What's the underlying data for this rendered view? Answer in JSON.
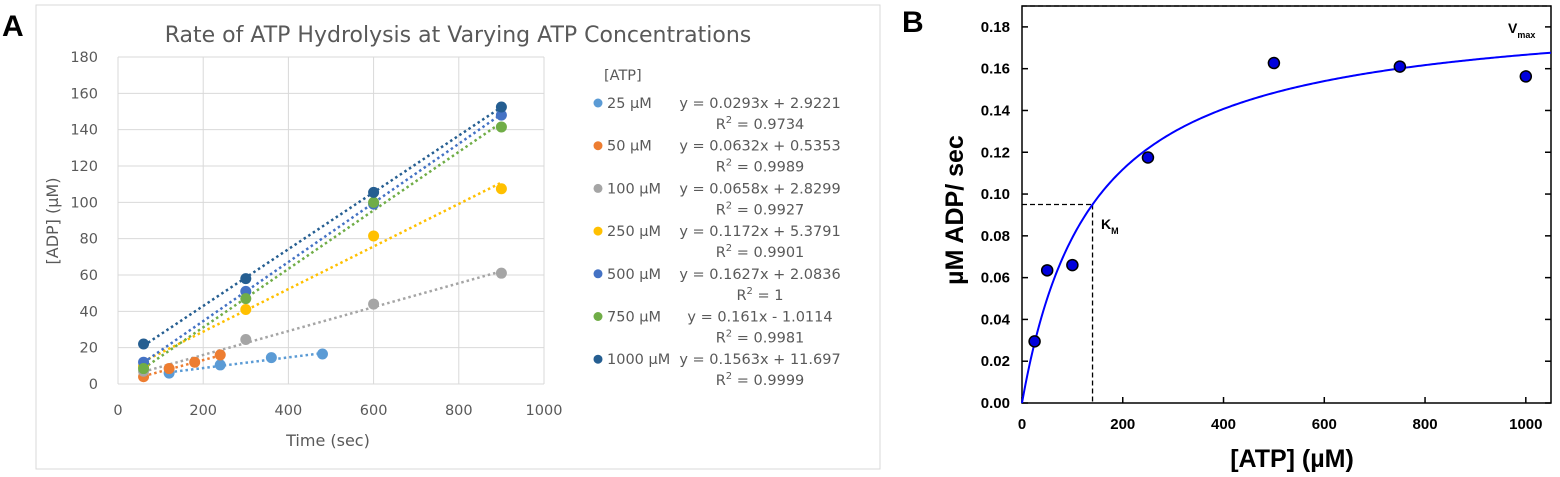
{
  "panels": {
    "a_label": "A",
    "b_label": "B"
  },
  "chart_data": [
    {
      "type": "scatter",
      "title": "Rate of ATP Hydrolysis at Varying ATP Concentrations",
      "xlabel": "Time (sec)",
      "ylabel": "[ADP] (µM)",
      "xlim": [
        0,
        1000
      ],
      "ylim": [
        0,
        180
      ],
      "xticks": [
        "0",
        "200",
        "400",
        "600",
        "800",
        "1000"
      ],
      "yticks": [
        "0",
        "20",
        "40",
        "60",
        "80",
        "100",
        "120",
        "140",
        "160",
        "180"
      ],
      "grid": true,
      "trendlines": "dotted linear",
      "legend_title": "[ATP]",
      "legend_position": "right",
      "series": [
        {
          "name": "25 µM",
          "color": "#5b9bd5",
          "x": [
            120,
            240,
            360,
            480
          ],
          "y": [
            6,
            10.5,
            14.5,
            16.5
          ],
          "slope": 0.0293,
          "intercept": 2.9221,
          "equation": "y = 0.0293x + 2.9221",
          "r2_prefix": "R",
          "r2_value": " = 0.9734"
        },
        {
          "name": "50 µM",
          "color": "#ed7d31",
          "x": [
            60,
            120,
            180,
            240
          ],
          "y": [
            4,
            8.5,
            12,
            16
          ],
          "slope": 0.0632,
          "intercept": 0.5353,
          "equation": "y = 0.0632x + 0.5353",
          "r2_prefix": "R",
          "r2_value": " = 0.9989"
        },
        {
          "name": "100 µM",
          "color": "#a5a5a5",
          "x": [
            60,
            300,
            600,
            900
          ],
          "y": [
            7,
            24.5,
            44,
            61
          ],
          "slope": 0.0658,
          "intercept": 2.8299,
          "equation": "y = 0.0658x + 2.8299",
          "r2_prefix": "R",
          "r2_value": " = 0.9927"
        },
        {
          "name": "250 µM",
          "color": "#ffc000",
          "x": [
            60,
            300,
            600,
            900
          ],
          "y": [
            10,
            41,
            81.5,
            107.5
          ],
          "slope": 0.1172,
          "intercept": 5.3791,
          "equation": "y = 0.1172x + 5.3791",
          "r2_prefix": "R",
          "r2_value": " = 0.9901"
        },
        {
          "name": "500 µM",
          "color": "#4472c4",
          "x": [
            60,
            300,
            600,
            900
          ],
          "y": [
            12,
            51,
            99,
            148
          ],
          "slope": 0.1627,
          "intercept": 2.0836,
          "equation": "y = 0.1627x + 2.0836",
          "r2_prefix": "R",
          "r2_value": " = 1"
        },
        {
          "name": "750 µM",
          "color": "#70ad47",
          "x": [
            60,
            300,
            600,
            900
          ],
          "y": [
            8.5,
            47,
            100,
            141.5
          ],
          "slope": 0.161,
          "intercept": -1.0114,
          "equation": "y = 0.161x - 1.0114",
          "r2_prefix": "R",
          "r2_value": " = 0.9981"
        },
        {
          "name": "1000 µM",
          "color": "#255e91",
          "x": [
            60,
            300,
            600,
            900
          ],
          "y": [
            22,
            58,
            105.5,
            152.5
          ],
          "slope": 0.1563,
          "intercept": 11.697,
          "equation": "y = 0.1563x + 11.697",
          "r2_prefix": "R",
          "r2_value": " = 0.9999"
        }
      ]
    },
    {
      "type": "scatter",
      "xlabel": "[ATP] (µM)",
      "ylabel": "µM ADP/ sec",
      "xlim": [
        0,
        1050
      ],
      "ylim": [
        0,
        0.19
      ],
      "xticks": [
        "0",
        "200",
        "400",
        "600",
        "800",
        "1000"
      ],
      "yticks": [
        "0.00",
        "0.02",
        "0.04",
        "0.06",
        "0.08",
        "0.10",
        "0.12",
        "0.14",
        "0.16",
        "0.18"
      ],
      "grid": false,
      "point_color": "#0000dd",
      "fit_color": "#0000ff",
      "points": {
        "x": [
          25,
          50,
          100,
          250,
          500,
          750,
          1000
        ],
        "y": [
          0.0295,
          0.0635,
          0.066,
          0.1175,
          0.1627,
          0.161,
          0.1563
        ]
      },
      "fit": {
        "model": "Michaelis-Menten",
        "vmax": 0.19,
        "km": 140
      },
      "annotations": {
        "vmax_main": "V",
        "vmax_sub": "max",
        "vmax_value": 0.19,
        "km_main": "K",
        "km_sub": "M",
        "km_value": 140,
        "km_half_rate": 0.095
      }
    }
  ]
}
